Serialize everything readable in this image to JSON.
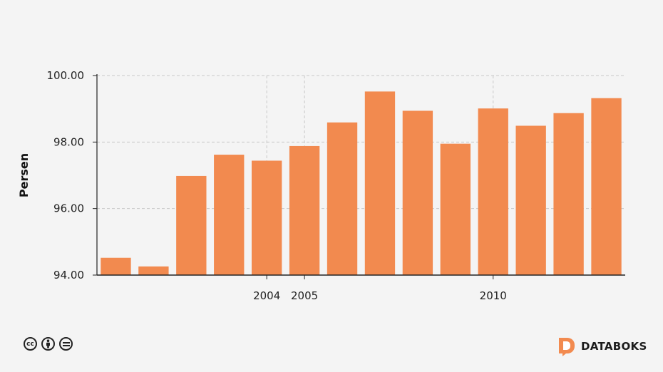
{
  "chart_data": {
    "type": "bar",
    "ylabel": "Persen",
    "ylim": [
      94,
      100
    ],
    "yticks": [
      "94.00",
      "96.00",
      "98.00",
      "100.00"
    ],
    "x": [
      2000,
      2001,
      2002,
      2003,
      2004,
      2005,
      2006,
      2007,
      2008,
      2009,
      2010,
      2011,
      2012,
      2013
    ],
    "values": [
      94.52,
      94.26,
      96.98,
      97.62,
      97.44,
      97.88,
      98.59,
      99.52,
      98.94,
      97.95,
      99.01,
      98.49,
      98.87,
      99.32
    ],
    "xticks": [
      "2004",
      "2005",
      "2010"
    ],
    "bar_color": "#f28a4f",
    "grid": true
  },
  "footer": {
    "license_icons": [
      "cc-icon",
      "by-icon",
      "nd-icon"
    ],
    "brand": "DATABOKS",
    "brand_color": "#f28a4f"
  }
}
